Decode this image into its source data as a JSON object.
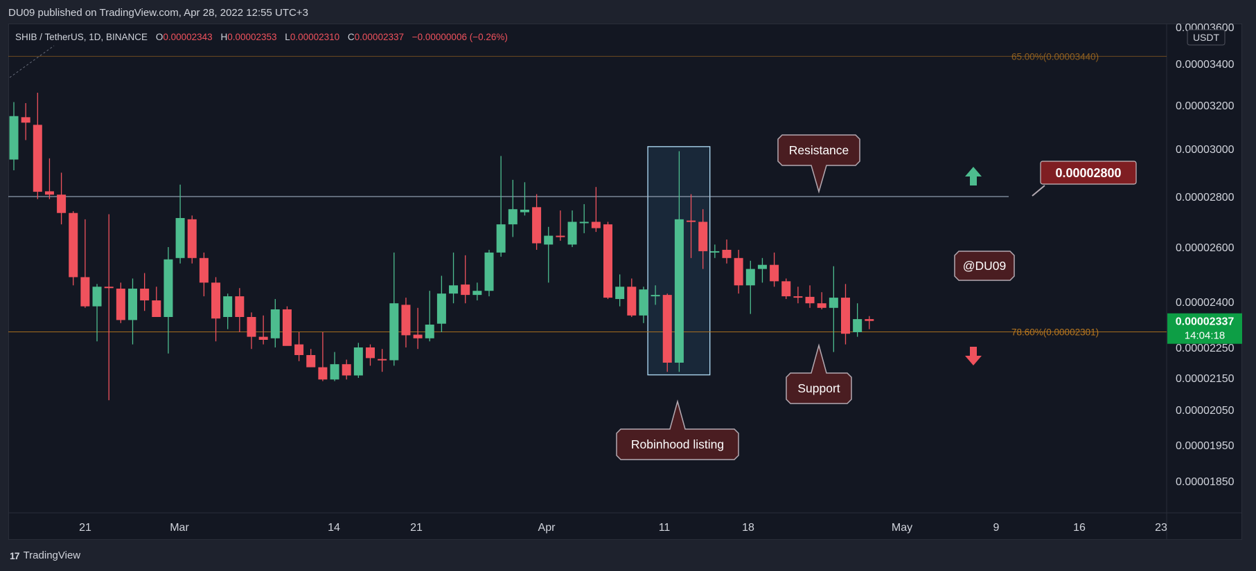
{
  "header": {
    "published": "DU09 published on TradingView.com, Apr 28, 2022 12:55 UTC+3"
  },
  "footer": {
    "brand": "TradingView",
    "logo_glyph": "17"
  },
  "colors": {
    "up": "#4dbd8f",
    "down": "#f0525d",
    "axis_text": "#d1d4dc",
    "fib_line": "#b8771f",
    "horizontal_line": "#aebcd0",
    "callout_bg": "#4a1d21",
    "callout_border": "#b4aab2",
    "price_tag_bg": "#0d9e45",
    "level_tag_bg": "#7f1e22"
  },
  "chart_data": {
    "type": "candlestick",
    "symbol_line": {
      "symbol": "SHIB / TetherUS, 1D, BINANCE",
      "o_label": "O",
      "o": "0.00002343",
      "h_label": "H",
      "h": "0.00002353",
      "l_label": "L",
      "l": "0.00002310",
      "c_label": "C",
      "c": "0.00002337",
      "change": "−0.00000006 (−0.26%)"
    },
    "currency": "USDT",
    "y_axis": {
      "ticks": [
        "0.00003600",
        "0.00003400",
        "0.00003200",
        "0.00003000",
        "0.00002800",
        "0.00002600",
        "0.00002400",
        "0.00002250",
        "0.00002150",
        "0.00002050",
        "0.00001950",
        "0.00001850"
      ]
    },
    "x_axis": {
      "ticks": [
        "21",
        "Mar",
        "14",
        "21",
        "Apr",
        "11",
        "18",
        "May",
        "9",
        "16",
        "23"
      ]
    },
    "candles": [
      {
        "date": "2022-02-16",
        "o": 2.955e-05,
        "h": 3.215e-05,
        "l": 2.91e-05,
        "c": 3.15e-05
      },
      {
        "date": "2022-02-17",
        "o": 3.145e-05,
        "h": 3.21e-05,
        "l": 3.04e-05,
        "c": 3.12e-05
      },
      {
        "date": "2022-02-18",
        "o": 3.11e-05,
        "h": 3.26e-05,
        "l": 2.79e-05,
        "c": 2.82e-05
      },
      {
        "date": "2022-02-19",
        "o": 2.822e-05,
        "h": 2.96e-05,
        "l": 2.79e-05,
        "c": 2.808e-05
      },
      {
        "date": "2022-02-20",
        "o": 2.808e-05,
        "h": 2.9e-05,
        "l": 2.69e-05,
        "c": 2.735e-05
      },
      {
        "date": "2022-02-21",
        "o": 2.735e-05,
        "h": 2.742e-05,
        "l": 2.46e-05,
        "c": 2.49e-05
      },
      {
        "date": "2022-02-22",
        "o": 2.49e-05,
        "h": 2.71e-05,
        "l": 2.38e-05,
        "c": 2.385e-05
      },
      {
        "date": "2022-02-23",
        "o": 2.385e-05,
        "h": 2.465e-05,
        "l": 2.27e-05,
        "c": 2.455e-05
      },
      {
        "date": "2022-02-24",
        "o": 2.455e-05,
        "h": 2.73e-05,
        "l": 2.08e-05,
        "c": 2.45e-05
      },
      {
        "date": "2022-02-25",
        "o": 2.448e-05,
        "h": 2.47e-05,
        "l": 2.33e-05,
        "c": 2.34e-05
      },
      {
        "date": "2022-02-26",
        "o": 2.34e-05,
        "h": 2.485e-05,
        "l": 2.26e-05,
        "c": 2.448e-05
      },
      {
        "date": "2022-02-27",
        "o": 2.448e-05,
        "h": 2.505e-05,
        "l": 2.37e-05,
        "c": 2.405e-05
      },
      {
        "date": "2022-02-28",
        "o": 2.405e-05,
        "h": 2.455e-05,
        "l": 2.35e-05,
        "c": 2.35e-05
      },
      {
        "date": "2022-03-01",
        "o": 2.35e-05,
        "h": 2.6e-05,
        "l": 2.23e-05,
        "c": 2.555e-05
      },
      {
        "date": "2022-03-02",
        "o": 2.56e-05,
        "h": 2.85e-05,
        "l": 2.54e-05,
        "c": 2.715e-05
      },
      {
        "date": "2022-03-03",
        "o": 2.71e-05,
        "h": 2.725e-05,
        "l": 2.54e-05,
        "c": 2.56e-05
      },
      {
        "date": "2022-03-04",
        "o": 2.56e-05,
        "h": 2.58e-05,
        "l": 2.42e-05,
        "c": 2.47e-05
      },
      {
        "date": "2022-03-05",
        "o": 2.47e-05,
        "h": 2.49e-05,
        "l": 2.27e-05,
        "c": 2.345e-05
      },
      {
        "date": "2022-03-06",
        "o": 2.35e-05,
        "h": 2.43e-05,
        "l": 2.31e-05,
        "c": 2.42e-05
      },
      {
        "date": "2022-03-07",
        "o": 2.42e-05,
        "h": 2.45e-05,
        "l": 2.3e-05,
        "c": 2.35e-05
      },
      {
        "date": "2022-03-08",
        "o": 2.35e-05,
        "h": 2.365e-05,
        "l": 2.245e-05,
        "c": 2.285e-05
      },
      {
        "date": "2022-03-09",
        "o": 2.285e-05,
        "h": 2.355e-05,
        "l": 2.26e-05,
        "c": 2.275e-05
      },
      {
        "date": "2022-03-10",
        "o": 2.28e-05,
        "h": 2.41e-05,
        "l": 2.25e-05,
        "c": 2.375e-05
      },
      {
        "date": "2022-03-11",
        "o": 2.375e-05,
        "h": 2.385e-05,
        "l": 2.265e-05,
        "c": 2.255e-05
      },
      {
        "date": "2022-03-12",
        "o": 2.26e-05,
        "h": 2.3e-05,
        "l": 2.205e-05,
        "c": 2.225e-05
      },
      {
        "date": "2022-03-13",
        "o": 2.225e-05,
        "h": 2.245e-05,
        "l": 2.19e-05,
        "c": 2.185e-05
      },
      {
        "date": "2022-03-14",
        "o": 2.185e-05,
        "h": 2.3e-05,
        "l": 2.14e-05,
        "c": 2.145e-05
      },
      {
        "date": "2022-03-15",
        "o": 2.145e-05,
        "h": 2.235e-05,
        "l": 2.14e-05,
        "c": 2.195e-05
      },
      {
        "date": "2022-03-16",
        "o": 2.195e-05,
        "h": 2.21e-05,
        "l": 2.145e-05,
        "c": 2.158e-05
      },
      {
        "date": "2022-03-17",
        "o": 2.158e-05,
        "h": 2.265e-05,
        "l": 2.15e-05,
        "c": 2.25e-05
      },
      {
        "date": "2022-03-18",
        "o": 2.25e-05,
        "h": 2.26e-05,
        "l": 2.19e-05,
        "c": 2.215e-05
      },
      {
        "date": "2022-03-19",
        "o": 2.212e-05,
        "h": 2.245e-05,
        "l": 2.17e-05,
        "c": 2.208e-05
      },
      {
        "date": "2022-03-20",
        "o": 2.208e-05,
        "h": 2.58e-05,
        "l": 2.19e-05,
        "c": 2.395e-05
      },
      {
        "date": "2022-03-21",
        "o": 2.39e-05,
        "h": 2.415e-05,
        "l": 2.25e-05,
        "c": 2.29e-05
      },
      {
        "date": "2022-03-22",
        "o": 2.292e-05,
        "h": 2.38e-05,
        "l": 2.245e-05,
        "c": 2.28e-05
      },
      {
        "date": "2022-03-23",
        "o": 2.28e-05,
        "h": 2.44e-05,
        "l": 2.27e-05,
        "c": 2.325e-05
      },
      {
        "date": "2022-03-24",
        "o": 2.328e-05,
        "h": 2.495e-05,
        "l": 2.3e-05,
        "c": 2.43e-05
      },
      {
        "date": "2022-03-25",
        "o": 2.43e-05,
        "h": 2.58e-05,
        "l": 2.395e-05,
        "c": 2.46e-05
      },
      {
        "date": "2022-03-26",
        "o": 2.463e-05,
        "h": 2.57e-05,
        "l": 2.395e-05,
        "c": 2.425e-05
      },
      {
        "date": "2022-03-27",
        "o": 2.425e-05,
        "h": 2.47e-05,
        "l": 2.405e-05,
        "c": 2.44e-05
      },
      {
        "date": "2022-03-28",
        "o": 2.44e-05,
        "h": 2.59e-05,
        "l": 2.42e-05,
        "c": 2.58e-05
      },
      {
        "date": "2022-03-29",
        "o": 2.58e-05,
        "h": 2.97e-05,
        "l": 2.565e-05,
        "c": 2.69e-05
      },
      {
        "date": "2022-03-30",
        "o": 2.69e-05,
        "h": 2.87e-05,
        "l": 2.64e-05,
        "c": 2.75e-05
      },
      {
        "date": "2022-03-31",
        "o": 2.738e-05,
        "h": 2.86e-05,
        "l": 2.725e-05,
        "c": 2.748e-05
      },
      {
        "date": "2022-04-01",
        "o": 2.758e-05,
        "h": 2.81e-05,
        "l": 2.59e-05,
        "c": 2.615e-05
      },
      {
        "date": "2022-04-02",
        "o": 2.61e-05,
        "h": 2.68e-05,
        "l": 2.47e-05,
        "c": 2.645e-05
      },
      {
        "date": "2022-04-03",
        "o": 2.645e-05,
        "h": 2.745e-05,
        "l": 2.625e-05,
        "c": 2.64e-05
      },
      {
        "date": "2022-04-04",
        "o": 2.61e-05,
        "h": 2.745e-05,
        "l": 2.6e-05,
        "c": 2.7e-05
      },
      {
        "date": "2022-04-05",
        "o": 2.7e-05,
        "h": 2.77e-05,
        "l": 2.655e-05,
        "c": 2.7e-05
      },
      {
        "date": "2022-04-06",
        "o": 2.7e-05,
        "h": 2.84e-05,
        "l": 2.66e-05,
        "c": 2.675e-05
      },
      {
        "date": "2022-04-07",
        "o": 2.69e-05,
        "h": 2.7e-05,
        "l": 2.41e-05,
        "c": 2.415e-05
      },
      {
        "date": "2022-04-08",
        "o": 2.41e-05,
        "h": 2.5e-05,
        "l": 2.385e-05,
        "c": 2.455e-05
      },
      {
        "date": "2022-04-09",
        "o": 2.455e-05,
        "h": 2.485e-05,
        "l": 2.35e-05,
        "c": 2.355e-05
      },
      {
        "date": "2022-04-10",
        "o": 2.355e-05,
        "h": 2.455e-05,
        "l": 2.33e-05,
        "c": 2.445e-05
      },
      {
        "date": "2022-04-11",
        "o": 2.425e-05,
        "h": 2.46e-05,
        "l": 2.39e-05,
        "c": 2.425e-05
      },
      {
        "date": "2022-04-12",
        "o": 2.425e-05,
        "h": 2.43e-05,
        "l": 2.17e-05,
        "c": 2.2e-05
      },
      {
        "date": "2022-04-13",
        "o": 2.2e-05,
        "h": 2.99e-05,
        "l": 2.17e-05,
        "c": 2.71e-05
      },
      {
        "date": "2022-04-14",
        "o": 2.705e-05,
        "h": 2.81e-05,
        "l": 2.56e-05,
        "c": 2.7e-05
      },
      {
        "date": "2022-04-15",
        "o": 2.7e-05,
        "h": 2.75e-05,
        "l": 2.52e-05,
        "c": 2.585e-05
      },
      {
        "date": "2022-04-16",
        "o": 2.585e-05,
        "h": 2.61e-05,
        "l": 2.56e-05,
        "c": 2.585e-05
      },
      {
        "date": "2022-04-17",
        "o": 2.59e-05,
        "h": 2.63e-05,
        "l": 2.54e-05,
        "c": 2.56e-05
      },
      {
        "date": "2022-04-18",
        "o": 2.56e-05,
        "h": 2.59e-05,
        "l": 2.43e-05,
        "c": 2.46e-05
      },
      {
        "date": "2022-04-19",
        "o": 2.46e-05,
        "h": 2.55e-05,
        "l": 2.36e-05,
        "c": 2.52e-05
      },
      {
        "date": "2022-04-20",
        "o": 2.52e-05,
        "h": 2.56e-05,
        "l": 2.47e-05,
        "c": 2.535e-05
      },
      {
        "date": "2022-04-21",
        "o": 2.535e-05,
        "h": 2.58e-05,
        "l": 2.455e-05,
        "c": 2.475e-05
      },
      {
        "date": "2022-04-22",
        "o": 2.475e-05,
        "h": 2.485e-05,
        "l": 2.41e-05,
        "c": 2.42e-05
      },
      {
        "date": "2022-04-23",
        "o": 2.42e-05,
        "h": 2.455e-05,
        "l": 2.395e-05,
        "c": 2.415e-05
      },
      {
        "date": "2022-04-24",
        "o": 2.418e-05,
        "h": 2.46e-05,
        "l": 2.38e-05,
        "c": 2.395e-05
      },
      {
        "date": "2022-04-25",
        "o": 2.395e-05,
        "h": 2.435e-05,
        "l": 2.375e-05,
        "c": 2.38e-05
      },
      {
        "date": "2022-04-26",
        "o": 2.38e-05,
        "h": 2.53e-05,
        "l": 2.235e-05,
        "c": 2.415e-05
      },
      {
        "date": "2022-04-27",
        "o": 2.415e-05,
        "h": 2.465e-05,
        "l": 2.26e-05,
        "c": 2.295e-05
      },
      {
        "date": "2022-04-28",
        "o": 2.3e-05,
        "h": 2.395e-05,
        "l": 2.285e-05,
        "c": 2.343e-05
      },
      {
        "date": "2022-04-29",
        "o": 2.343e-05,
        "h": 2.353e-05,
        "l": 2.31e-05,
        "c": 2.337e-05
      }
    ],
    "fib_levels": [
      {
        "label": "65.00%(0.00003440)",
        "price": 3.44e-05
      },
      {
        "label": "78.60%(0.00002301)",
        "price": 2.301e-05
      }
    ],
    "horizontal_line": 2.8e-05,
    "price_tag": {
      "value": "0.00002337",
      "countdown": "14:04:18",
      "price": 2.337e-05
    },
    "highlight_box": {
      "start": "2022-04-11",
      "end": "2022-04-15",
      "high": 3.01e-05,
      "low": 2.16e-05
    },
    "annotations": {
      "resistance": "Resistance",
      "support": "Support",
      "robinhood": "Robinhood listing",
      "author": "@DU09",
      "level": "0.00002800"
    }
  }
}
